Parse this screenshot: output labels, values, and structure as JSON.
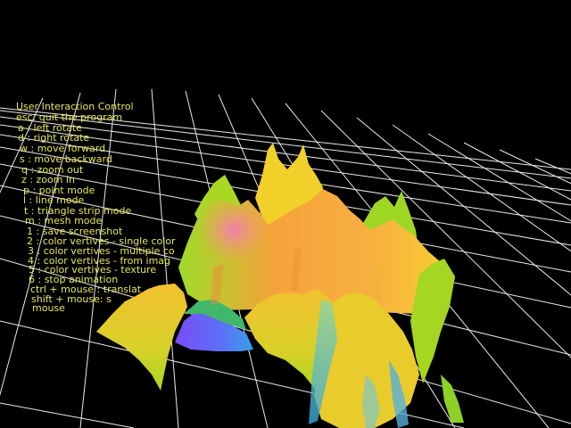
{
  "colors": {
    "background": "#000000",
    "grid": "#ffffff",
    "overlay_text": "#e6e85a"
  },
  "help": {
    "title": "User Interaction Control",
    "lines": [
      "esc: quit the program",
      "a  : left rotate",
      "d  : right rotate",
      "w : move forward",
      "s  : move backward",
      "q  : zoom out",
      "z  : zoom in",
      "p  : point mode",
      "l   : line mode",
      "t   : triangle strip mode",
      "m  : mesh mode",
      "1  : save screenshot",
      "2  : color vertives - single color",
      "3  : color vertives - multiple co",
      "4  : color vertives - from imag",
      "5  : color vertives - texture",
      "6  : stop animation",
      "ctrl + mouse : translat",
      "shift + mouse: s",
      "mouse"
    ]
  }
}
